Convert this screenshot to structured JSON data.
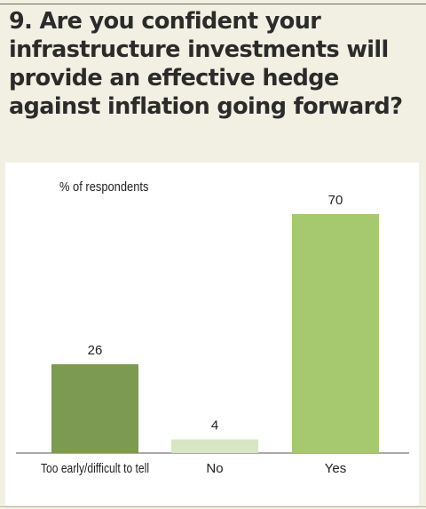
{
  "header": {
    "question": "9. Are you confident your infrastructure investments will provide an effective hedge against inflation going forward?"
  },
  "chart_data": {
    "type": "bar",
    "categories": [
      "Too early/difficult to tell",
      "No",
      "Yes"
    ],
    "values": [
      26,
      4,
      70
    ],
    "ylabel": "% of respondents",
    "ylim": [
      0,
      70
    ],
    "grid": false,
    "colors": [
      "#7c9a52",
      "#d7e6c4",
      "#a6c86e"
    ]
  }
}
